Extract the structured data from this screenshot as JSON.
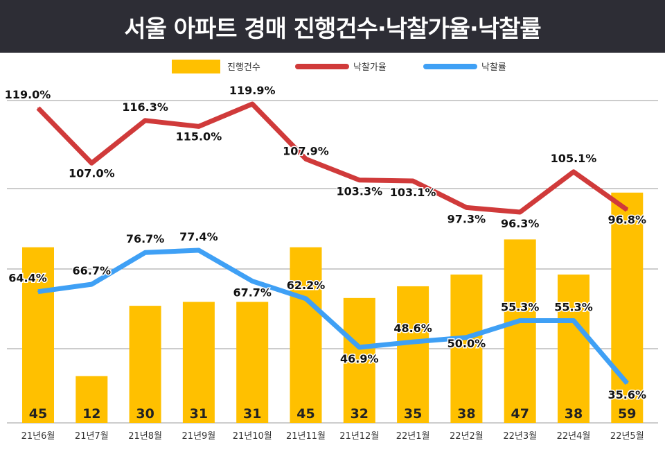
{
  "chart_data": {
    "type": "bar",
    "title": "서울 아파트 경매 진행건수·낙찰가율·낙찰률",
    "categories": [
      "21년6월",
      "21년7월",
      "21년8월",
      "21년9월",
      "21년10월",
      "21년11월",
      "21년12월",
      "22년1월",
      "22년2월",
      "22년3월",
      "22년4월",
      "22년5월"
    ],
    "series": [
      {
        "name": "진행건수",
        "type": "bar",
        "color": "#FFC000",
        "values": [
          45,
          12,
          30,
          31,
          31,
          45,
          32,
          35,
          38,
          47,
          38,
          59
        ]
      },
      {
        "name": "낙찰가율",
        "type": "line",
        "color": "#D03A3A",
        "unit": "%",
        "values": [
          119.0,
          107.0,
          116.3,
          115.0,
          119.9,
          107.9,
          103.3,
          103.1,
          97.3,
          96.3,
          105.1,
          96.8
        ]
      },
      {
        "name": "낙찰률",
        "type": "line",
        "color": "#3FA0F5",
        "unit": "%",
        "values": [
          64.4,
          66.7,
          76.7,
          77.4,
          67.7,
          62.2,
          46.9,
          48.6,
          50.0,
          55.3,
          55.3,
          35.6
        ]
      }
    ],
    "grid": true,
    "legend": "top"
  }
}
